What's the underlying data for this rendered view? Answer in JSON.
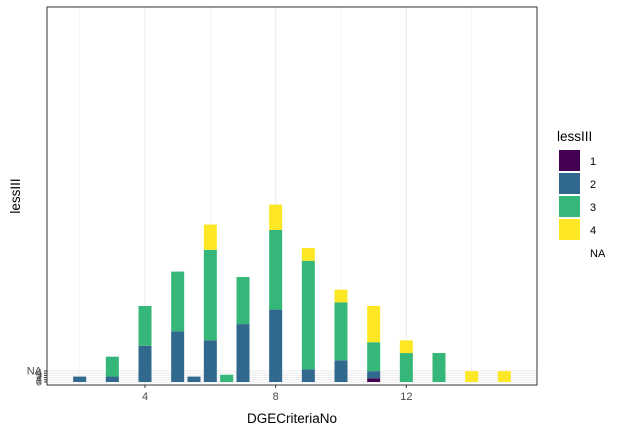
{
  "chart_data": {
    "type": "bar",
    "stacked": true,
    "xlabel": "DGECriteriaNo",
    "ylabel": "lessIII",
    "x_ticks": [
      4,
      8,
      12
    ],
    "y_tick_labels": [
      "0",
      "1",
      "2",
      "3",
      "4",
      "NA"
    ],
    "xlim": [
      1.0,
      16.0
    ],
    "ylim": [
      0,
      100
    ],
    "grid": true,
    "legend": {
      "title": "lessIII",
      "position": "right",
      "entries": [
        {
          "label": "1",
          "color": "#440154"
        },
        {
          "label": "2",
          "color": "#31688E"
        },
        {
          "label": "3",
          "color": "#35B779"
        },
        {
          "label": "4",
          "color": "#FDE725"
        },
        {
          "label": "NA",
          "color": null
        }
      ]
    },
    "x": [
      2,
      3,
      4,
      5,
      5.5,
      6,
      6.5,
      7,
      8,
      9,
      10,
      11,
      12,
      13,
      14,
      15
    ],
    "series": [
      {
        "name": "1",
        "color": "#440154",
        "values": [
          0,
          0,
          0,
          0,
          0,
          0,
          0,
          0,
          0,
          0,
          0,
          1,
          0,
          0,
          0,
          0
        ]
      },
      {
        "name": "2",
        "color": "#31688E",
        "values": [
          1.5,
          1.5,
          10,
          14,
          1.5,
          11.5,
          0,
          16,
          20,
          3.5,
          6,
          2,
          0,
          0,
          0,
          0
        ]
      },
      {
        "name": "3",
        "color": "#35B779",
        "values": [
          0,
          5.5,
          11,
          16.5,
          0,
          25,
          2,
          13,
          22,
          30,
          16,
          8,
          8,
          8,
          0,
          0
        ]
      },
      {
        "name": "4",
        "color": "#FDE725",
        "values": [
          0,
          0,
          0,
          0,
          0,
          7,
          0,
          0,
          7,
          3.5,
          3.5,
          10,
          3.5,
          0,
          3,
          3
        ]
      }
    ]
  }
}
